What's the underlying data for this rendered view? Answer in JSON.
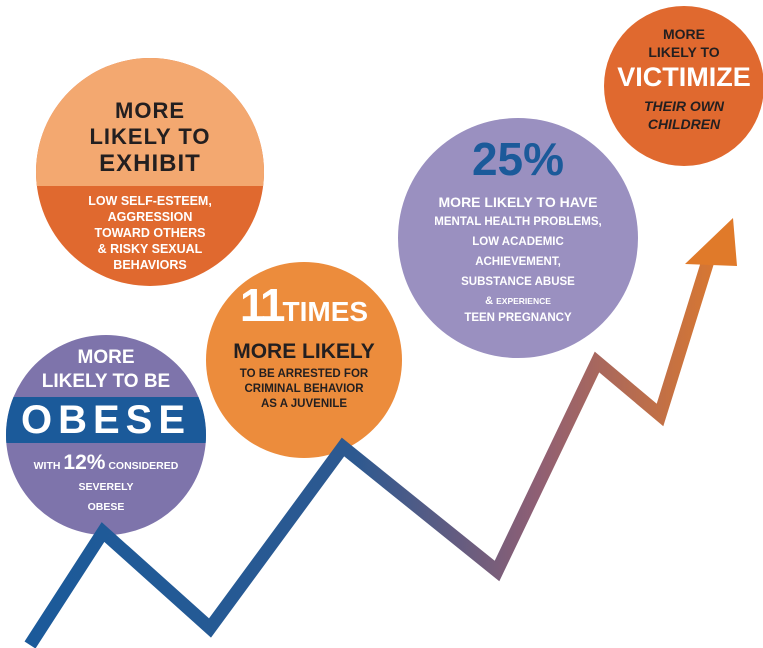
{
  "colors": {
    "peach": "#f3a870",
    "orange": "#e0692f",
    "bright_orange": "#ec8c3c",
    "purple": "#7e74ab",
    "lavender": "#9a90c0",
    "blue": "#1b5a9a",
    "arrow_start": "#1b5a9a",
    "arrow_end": "#e07a2a"
  },
  "bubble_exhibit": {
    "heading": [
      "MORE",
      "LIKELY TO",
      "EXHIBIT"
    ],
    "details": [
      "LOW SELF-ESTEEM,",
      "AGGRESSION",
      "TOWARD OTHERS",
      "& RISKY SEXUAL",
      "BEHAVIORS"
    ]
  },
  "bubble_obese": {
    "heading": [
      "MORE",
      "LIKELY TO BE"
    ],
    "banner": "OBESE",
    "line1_pre": "WITH",
    "line1_num": "12%",
    "line1_post": "CONSIDERED",
    "line2": "SEVERELY",
    "line3": "OBESE"
  },
  "bubble_arrested": {
    "number": "11",
    "number_unit": "TIMES",
    "heading": "MORE LIKELY",
    "details": [
      "TO BE ARRESTED FOR",
      "CRIMINAL BEHAVIOR",
      "AS A JUVENILE"
    ]
  },
  "bubble_mental": {
    "percent": "25%",
    "heading": "MORE LIKELY TO HAVE",
    "details": [
      "MENTAL HEALTH PROBLEMS,",
      "LOW ACADEMIC",
      "ACHIEVEMENT,",
      "SUBSTANCE ABUSE"
    ],
    "amp": "&",
    "experience": "EXPERIENCE",
    "last": "TEEN PREGNANCY"
  },
  "bubble_victimize": {
    "heading": [
      "MORE",
      "LIKELY TO"
    ],
    "big": "VICTIMIZE",
    "italic": [
      "THEIR OWN",
      "CHILDREN"
    ]
  }
}
